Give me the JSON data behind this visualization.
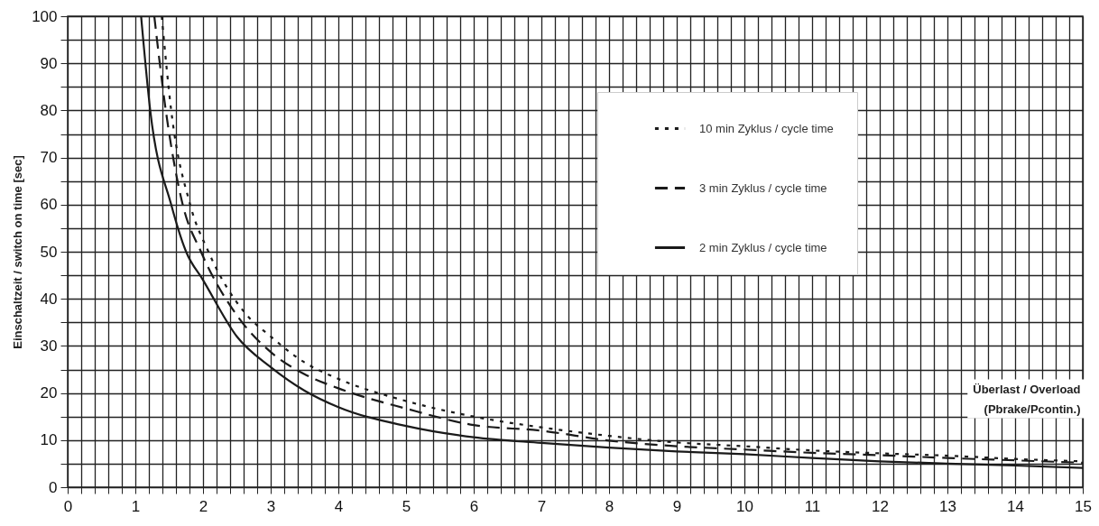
{
  "chart_data": {
    "type": "line",
    "xlabel": [
      "Überlast / Overload",
      "(Pbrake/Pcontin.)"
    ],
    "ylabel": "Einschaltzeit / switch on time [sec]",
    "series": [
      {
        "name": "10 min  Zyklus / cycle time",
        "color": "#1a1a1a",
        "line_style": "dotted",
        "x": [
          1.39,
          1.53,
          1.81,
          2.08,
          2.62,
          3,
          3.5,
          4,
          5,
          6,
          7,
          8,
          9,
          10,
          11,
          12,
          13,
          14,
          15
        ],
        "values": [
          100,
          80,
          60,
          50,
          37,
          32,
          26.5,
          23,
          18.3,
          15,
          12.7,
          10.9,
          9.5,
          8.7,
          7.8,
          7.2,
          6.7,
          6,
          5.5
        ]
      },
      {
        "name": "3 min  Zyklus / cycle time",
        "color": "#1a1a1a",
        "line_style": "dashed",
        "x": [
          1.28,
          1.45,
          1.7,
          1.97,
          2.5,
          3,
          3.5,
          4,
          5,
          6,
          7,
          8,
          9,
          10,
          11,
          12,
          13,
          14,
          15
        ],
        "values": [
          100,
          80,
          60,
          50,
          36.5,
          28.7,
          24,
          21,
          16.7,
          13.2,
          12,
          9.9,
          8.7,
          8,
          7.3,
          6.8,
          6.2,
          5.7,
          5.2
        ]
      },
      {
        "name": "2 min  Zyklus / cycle time",
        "color": "#1a1a1a",
        "line_style": "solid",
        "x": [
          1.085,
          1.22,
          1.53,
          1.75,
          2,
          2.5,
          3,
          3.5,
          4,
          5,
          6,
          7,
          8,
          9,
          10,
          11,
          12,
          13,
          14,
          15
        ],
        "values": [
          100,
          80,
          60,
          50,
          44,
          32,
          25.5,
          20.5,
          17,
          13,
          10.6,
          9.4,
          8.4,
          7.6,
          7,
          6.2,
          5.5,
          5,
          4.6,
          4.1
        ]
      }
    ],
    "xlim": [
      0,
      15
    ],
    "ylim": [
      0,
      100
    ],
    "xticks": [
      0,
      {
        "value": 0.2,
        "label": null
      },
      {
        "value": 0.4,
        "label": null
      },
      {
        "value": 0.6,
        "label": null
      },
      {
        "value": 0.8,
        "label": null
      },
      1,
      {
        "value": 1.2,
        "label": null
      },
      {
        "value": 1.4,
        "label": null
      },
      {
        "value": 1.6,
        "label": null
      },
      {
        "value": 1.8,
        "label": null
      },
      2,
      {
        "value": 2.2,
        "label": null
      },
      {
        "value": 2.4,
        "label": null
      },
      {
        "value": 2.6,
        "label": null
      },
      {
        "value": 2.8,
        "label": null
      },
      3,
      {
        "value": 3.2,
        "label": null
      },
      {
        "value": 3.4,
        "label": null
      },
      {
        "value": 3.6,
        "label": null
      },
      {
        "value": 3.8,
        "label": null
      },
      4,
      {
        "value": 4.2,
        "label": null
      },
      {
        "value": 4.4,
        "label": null
      },
      {
        "value": 4.6,
        "label": null
      },
      {
        "value": 4.8,
        "label": null
      },
      5,
      {
        "value": 5.2,
        "label": null
      },
      {
        "value": 5.4,
        "label": null
      },
      {
        "value": 5.6,
        "label": null
      },
      {
        "value": 5.8,
        "label": null
      },
      6,
      {
        "value": 6.2,
        "label": null
      },
      {
        "value": 6.4,
        "label": null
      },
      {
        "value": 6.6,
        "label": null
      },
      {
        "value": 6.8,
        "label": null
      },
      7,
      {
        "value": 7.2,
        "label": null
      },
      {
        "value": 7.4,
        "label": null
      },
      {
        "value": 7.6,
        "label": null
      },
      {
        "value": 7.8,
        "label": null
      },
      8,
      {
        "value": 8.2,
        "label": null
      },
      {
        "value": 8.4,
        "label": null
      },
      {
        "value": 8.6,
        "label": null
      },
      {
        "value": 8.8,
        "label": null
      },
      9,
      {
        "value": 9.2,
        "label": null
      },
      {
        "value": 9.4,
        "label": null
      },
      {
        "value": 9.6,
        "label": null
      },
      {
        "value": 9.8,
        "label": null
      },
      10,
      {
        "value": 10.2,
        "label": null
      },
      {
        "value": 10.4,
        "label": null
      },
      {
        "value": 10.6,
        "label": null
      },
      {
        "value": 10.8,
        "label": null
      },
      11,
      {
        "value": 11.2,
        "label": null
      },
      {
        "value": 11.4,
        "label": null
      },
      {
        "value": 11.6,
        "label": null
      },
      {
        "value": 11.8,
        "label": null
      },
      12,
      {
        "value": 12.2,
        "label": null
      },
      {
        "value": 12.4,
        "label": null
      },
      {
        "value": 12.6,
        "label": null
      },
      {
        "value": 12.8,
        "label": null
      },
      13,
      {
        "value": 13.2,
        "label": null
      },
      {
        "value": 13.4,
        "label": null
      },
      {
        "value": 13.6,
        "label": null
      },
      {
        "value": 13.8,
        "label": null
      },
      14,
      {
        "value": 14.2,
        "label": null
      },
      {
        "value": 14.4,
        "label": null
      },
      {
        "value": 14.6,
        "label": null
      },
      {
        "value": 14.8,
        "label": null
      },
      15
    ],
    "yticks": [
      0,
      {
        "value": 5,
        "label": null
      },
      10,
      {
        "value": 15,
        "label": null
      },
      20,
      {
        "value": 25,
        "label": null
      },
      30,
      {
        "value": 35,
        "label": null
      },
      40,
      {
        "value": 45,
        "label": null
      },
      50,
      {
        "value": 55,
        "label": null
      },
      60,
      {
        "value": 65,
        "label": null
      },
      70,
      {
        "value": 75,
        "label": null
      },
      80,
      {
        "value": 85,
        "label": null
      },
      90,
      {
        "value": 95,
        "label": null
      },
      100
    ],
    "grid": true,
    "legend": "top right",
    "marker": "none"
  }
}
